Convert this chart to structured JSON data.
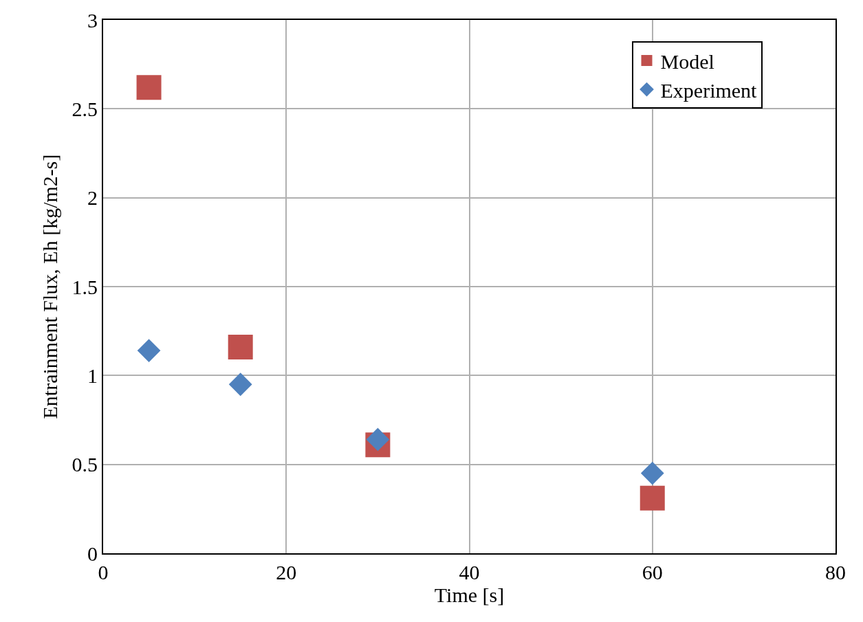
{
  "chart_data": {
    "type": "scatter",
    "xlabel": "Time [s]",
    "ylabel": "Entrainment Flux, Eh [kg/m2-s]",
    "x": [
      5,
      15,
      30,
      60
    ],
    "series": [
      {
        "name": "Model",
        "color": "#c0504d",
        "marker": "square",
        "values": [
          2.62,
          1.16,
          0.61,
          0.31
        ]
      },
      {
        "name": "Experiment",
        "color": "#4f81bd",
        "marker": "diamond",
        "values": [
          1.14,
          0.95,
          0.64,
          0.45
        ]
      }
    ],
    "xlim": [
      0,
      80
    ],
    "xticks": [
      0,
      20,
      40,
      60,
      80
    ],
    "ylim": [
      0,
      3
    ],
    "yticks": [
      0,
      0.5,
      1,
      1.5,
      2,
      2.5,
      3
    ],
    "grid": true,
    "legend": "top right"
  }
}
